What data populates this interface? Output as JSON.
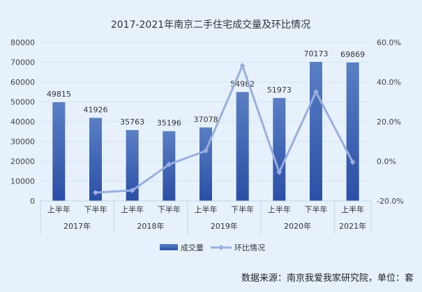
{
  "chart_data": {
    "type": "bar",
    "title": "2017-2021年南京二手住宅成交量及环比情况",
    "categories": [
      "上半年",
      "下半年",
      "上半年",
      "下半年",
      "上半年",
      "下半年",
      "上半年",
      "下半年",
      "上半年"
    ],
    "groups": [
      {
        "label": "2017年",
        "span": 2
      },
      {
        "label": "2018年",
        "span": 2
      },
      {
        "label": "2019年",
        "span": 2
      },
      {
        "label": "2020年",
        "span": 2
      },
      {
        "label": "2021年",
        "span": 1
      }
    ],
    "series": [
      {
        "name": "成交量",
        "type": "bar",
        "axis": "left",
        "values": [
          49815,
          41926,
          35763,
          35196,
          37078,
          54982,
          51973,
          70173,
          69869
        ]
      },
      {
        "name": "环比情况",
        "type": "line",
        "axis": "right",
        "values": [
          null,
          -15.8,
          -14.7,
          -1.6,
          5.3,
          48.3,
          -5.5,
          35.0,
          -0.4
        ]
      }
    ],
    "y_left": {
      "min": 0,
      "max": 80000,
      "ticks": [
        0,
        10000,
        20000,
        30000,
        40000,
        50000,
        60000,
        70000,
        80000
      ]
    },
    "y_right": {
      "min": -20,
      "max": 60,
      "ticks": [
        "-20.0%",
        "0.0%",
        "20.0%",
        "40.0%",
        "60.0%"
      ]
    },
    "legend_position": "bottom",
    "colors": {
      "bar_top": "#5a7fc4",
      "bar_bottom": "#2a4fa6",
      "line": "#9aaee0"
    }
  },
  "source": "数据来源：南京我爱我家研究院，单位：套"
}
